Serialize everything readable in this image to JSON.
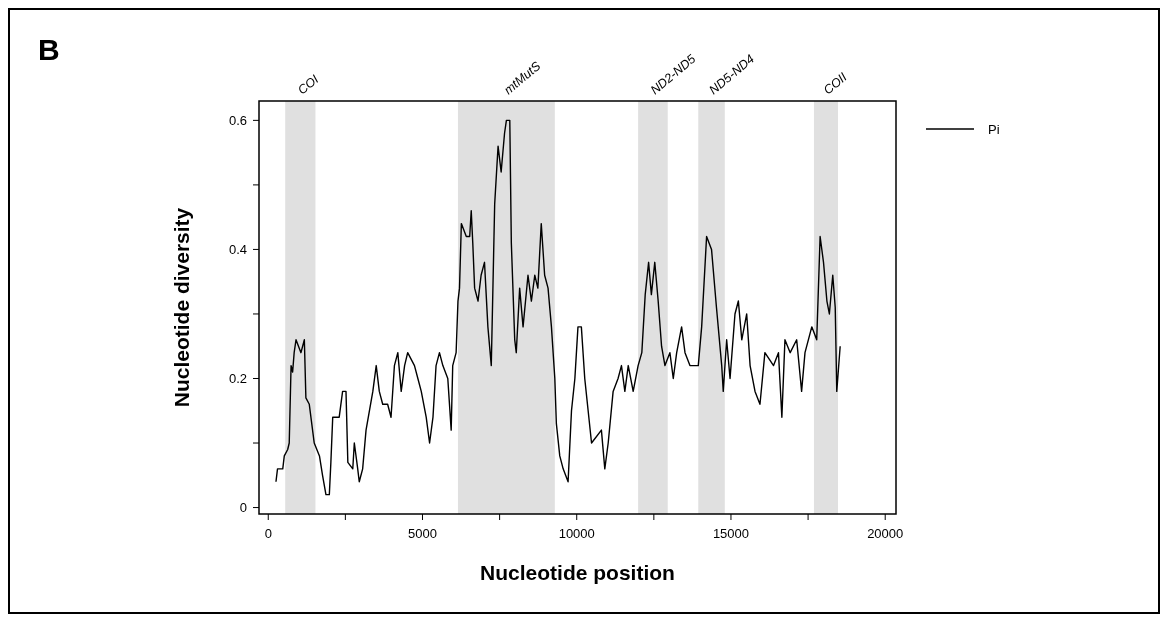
{
  "chart_data": {
    "type": "line",
    "xlabel": "Nucleotide position",
    "ylabel": "Nucleotide diversity",
    "annotations": [
      "B"
    ],
    "legend": "top right",
    "xlim": [
      -300,
      20350
    ],
    "ylim": [
      -0.01,
      0.63
    ],
    "xticks": [
      0,
      {
        "value": 2500,
        "label": null
      },
      5000,
      {
        "value": 7500,
        "label": null
      },
      10000,
      {
        "value": 12500,
        "label": null
      },
      15000,
      {
        "value": 17500,
        "label": null
      },
      20000
    ],
    "yticks": [
      0,
      {
        "value": 0.1,
        "label": null
      },
      0.2,
      {
        "value": 0.3,
        "label": null
      },
      0.4,
      {
        "value": 0.5,
        "label": null
      },
      0.6
    ],
    "bands": [
      {
        "axis": "x",
        "from": 550,
        "to": 1530,
        "label": "COI",
        "color": "#e0e0e0"
      },
      {
        "axis": "x",
        "from": 6150,
        "to": 9290,
        "label": "mtMutS",
        "color": "#e0e0e0"
      },
      {
        "axis": "x",
        "from": 11990,
        "to": 12950,
        "label": "ND2-ND5",
        "color": "#e0e0e0"
      },
      {
        "axis": "x",
        "from": 13940,
        "to": 14800,
        "label": "ND5-ND4",
        "color": "#e0e0e0"
      },
      {
        "axis": "x",
        "from": 17690,
        "to": 18470,
        "label": "COII",
        "color": "#e0e0e0"
      }
    ],
    "series": [
      {
        "name": "Pi",
        "color": "#000000",
        "x": [
          250,
          300,
          470,
          520,
          630,
          680,
          740,
          790,
          840,
          900,
          1060,
          1170,
          1220,
          1330,
          1490,
          1660,
          1760,
          1870,
          1980,
          2030,
          2090,
          2300,
          2410,
          2520,
          2580,
          2740,
          2790,
          2900,
          2950,
          3060,
          3170,
          3390,
          3500,
          3600,
          3710,
          3870,
          3980,
          4090,
          4200,
          4310,
          4420,
          4520,
          4740,
          4850,
          4960,
          5120,
          5230,
          5340,
          5440,
          5550,
          5660,
          5820,
          5930,
          5980,
          6090,
          6150,
          6200,
          6260,
          6420,
          6530,
          6580,
          6630,
          6690,
          6800,
          6900,
          7010,
          7120,
          7230,
          7340,
          7450,
          7550,
          7660,
          7720,
          7830,
          7880,
          7990,
          8040,
          8150,
          8260,
          8420,
          8530,
          8640,
          8740,
          8850,
          8960,
          9070,
          9180,
          9290,
          9340,
          9450,
          9560,
          9720,
          9830,
          9940,
          10040,
          10150,
          10260,
          10370,
          10480,
          10800,
          10910,
          11020,
          11180,
          11340,
          11450,
          11560,
          11670,
          11830,
          11990,
          12110,
          12220,
          12330,
          12420,
          12530,
          12640,
          12750,
          12860,
          13020,
          13130,
          13240,
          13400,
          13510,
          13670,
          13940,
          14050,
          14210,
          14370,
          14530,
          14700,
          14750,
          14860,
          14970,
          15130,
          15240,
          15350,
          15510,
          15620,
          15780,
          15940,
          16100,
          16380,
          16540,
          16650,
          16750,
          16920,
          17130,
          17290,
          17400,
          17620,
          17780,
          17890,
          18000,
          18110,
          18190,
          18300,
          18380,
          18430,
          18540
        ],
        "values": [
          0.04,
          0.06,
          0.06,
          0.08,
          0.09,
          0.1,
          0.22,
          0.21,
          0.24,
          0.26,
          0.24,
          0.26,
          0.17,
          0.16,
          0.1,
          0.08,
          0.05,
          0.02,
          0.02,
          0.07,
          0.14,
          0.14,
          0.18,
          0.18,
          0.07,
          0.06,
          0.1,
          0.06,
          0.04,
          0.06,
          0.12,
          0.18,
          0.22,
          0.18,
          0.16,
          0.16,
          0.14,
          0.22,
          0.24,
          0.18,
          0.22,
          0.24,
          0.22,
          0.2,
          0.18,
          0.14,
          0.1,
          0.14,
          0.22,
          0.24,
          0.22,
          0.2,
          0.12,
          0.22,
          0.24,
          0.32,
          0.34,
          0.44,
          0.42,
          0.42,
          0.46,
          0.41,
          0.34,
          0.32,
          0.36,
          0.38,
          0.28,
          0.22,
          0.47,
          0.56,
          0.52,
          0.58,
          0.6,
          0.6,
          0.41,
          0.26,
          0.24,
          0.34,
          0.28,
          0.36,
          0.32,
          0.36,
          0.34,
          0.44,
          0.36,
          0.34,
          0.28,
          0.2,
          0.13,
          0.08,
          0.06,
          0.04,
          0.15,
          0.2,
          0.28,
          0.28,
          0.2,
          0.15,
          0.1,
          0.12,
          0.06,
          0.1,
          0.18,
          0.2,
          0.22,
          0.18,
          0.22,
          0.18,
          0.22,
          0.24,
          0.33,
          0.38,
          0.33,
          0.38,
          0.32,
          0.25,
          0.22,
          0.24,
          0.2,
          0.24,
          0.28,
          0.24,
          0.22,
          0.22,
          0.28,
          0.42,
          0.4,
          0.31,
          0.22,
          0.18,
          0.26,
          0.2,
          0.3,
          0.32,
          0.26,
          0.3,
          0.22,
          0.18,
          0.16,
          0.24,
          0.22,
          0.24,
          0.14,
          0.26,
          0.24,
          0.26,
          0.18,
          0.24,
          0.28,
          0.26,
          0.42,
          0.38,
          0.32,
          0.3,
          0.36,
          0.31,
          0.18,
          0.25
        ]
      }
    ]
  }
}
